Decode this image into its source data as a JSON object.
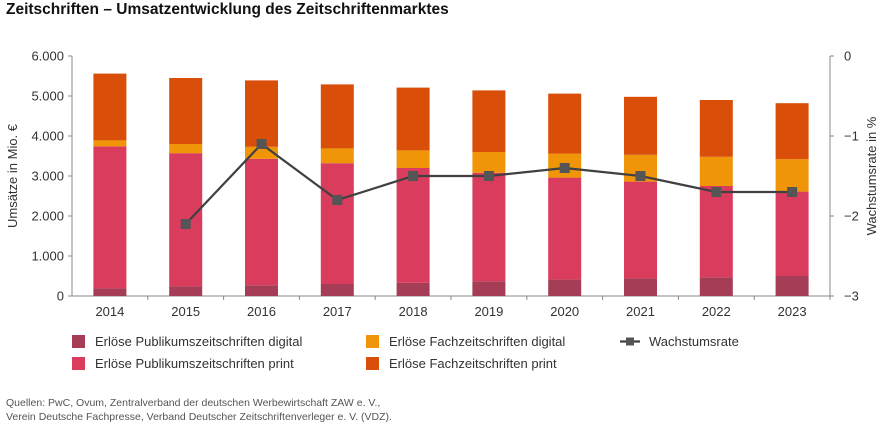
{
  "title": "Zeitschriften – Umsatzentwicklung des Zeitschriftenmarktes",
  "source_lines": [
    "Quellen: PwC, Ovum, Zentralverband der deutschen Werbewirtschaft ZAW e. V.,",
    "Verein Deutsche Fachpresse, Verband Deutscher Zeitschriftenverleger e. V. (VDZ)."
  ],
  "colors": {
    "pub_digital": "#a43d55",
    "pub_print": "#d93c5c",
    "fach_digital": "#ef9507",
    "fach_print": "#d94e09",
    "growth_line": "#404040",
    "growth_marker": "#555555",
    "axis": "#888888"
  },
  "chart_data": {
    "type": "bar",
    "stacked": true,
    "categories": [
      "2014",
      "2015",
      "2016",
      "2017",
      "2018",
      "2019",
      "2020",
      "2021",
      "2022",
      "2023"
    ],
    "ylabel": "Umsätze in Mio. €",
    "ylim": [
      0,
      6000
    ],
    "yticks": [
      "0",
      "1.000",
      "2.000",
      "3.000",
      "4.000",
      "5.000",
      "6.000"
    ],
    "ytick_values": [
      0,
      1000,
      2000,
      3000,
      4000,
      5000,
      6000
    ],
    "y2label": "Wachstumsrate in %",
    "y2lim": [
      -3,
      0
    ],
    "y2ticks": [
      "0",
      "−1",
      "−2",
      "−3"
    ],
    "y2tick_values": [
      0,
      -1,
      -2,
      -3
    ],
    "series": [
      {
        "name": "Erlöse Publikumszeitschriften digital",
        "color_key": "pub_digital",
        "values": [
          190,
          240,
          270,
          300,
          330,
          370,
          410,
          440,
          470,
          500
        ]
      },
      {
        "name": "Erlöse Publikumszeitschriften print",
        "color_key": "pub_print",
        "values": [
          3550,
          3330,
          3160,
          3020,
          2870,
          2710,
          2550,
          2420,
          2280,
          2110
        ]
      },
      {
        "name": "Erlöse Fachzeitschriften digital",
        "color_key": "fach_digital",
        "values": [
          150,
          230,
          300,
          370,
          440,
          520,
          600,
          670,
          730,
          810
        ]
      },
      {
        "name": "Erlöse Fachzeitschriften print",
        "color_key": "fach_print",
        "values": [
          1670,
          1650,
          1660,
          1600,
          1570,
          1540,
          1500,
          1450,
          1420,
          1400
        ]
      }
    ],
    "line_series": {
      "name": "Wachstumsrate",
      "axis": "right",
      "values": [
        null,
        -2.1,
        -1.1,
        -1.8,
        -1.5,
        -1.5,
        -1.4,
        -1.5,
        -1.7,
        -1.7
      ]
    },
    "legend_position": "bottom",
    "grid": false
  }
}
